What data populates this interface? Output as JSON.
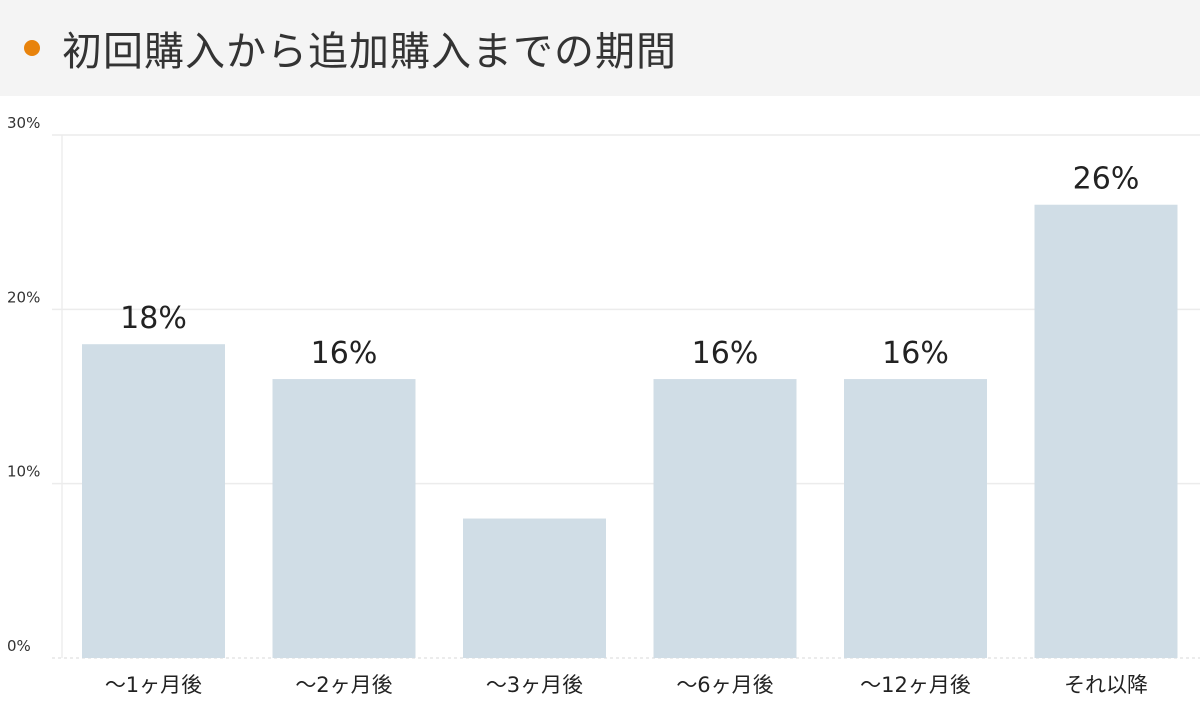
{
  "header": {
    "title": "初回購入から追加購入までの期間",
    "dot_color": "#e8830c"
  },
  "chart_data": {
    "type": "bar",
    "title": "初回購入から追加購入までの期間",
    "categories": [
      "～1ヶ月後",
      "～2ヶ月後",
      "～3ヶ月後",
      "～6ヶ月後",
      "～12ヶ月後",
      "それ以降"
    ],
    "values": [
      18,
      16,
      8,
      16,
      16,
      26
    ],
    "data_labels": [
      "18%",
      "16%",
      "",
      "16%",
      "16%",
      "26%"
    ],
    "yticks": [
      "0%",
      "10%",
      "20%",
      "30%"
    ],
    "ylim": [
      0,
      30
    ],
    "grid": true,
    "legend": "none",
    "bar_color": "#d0dde6",
    "grid_color": "#ececec"
  }
}
